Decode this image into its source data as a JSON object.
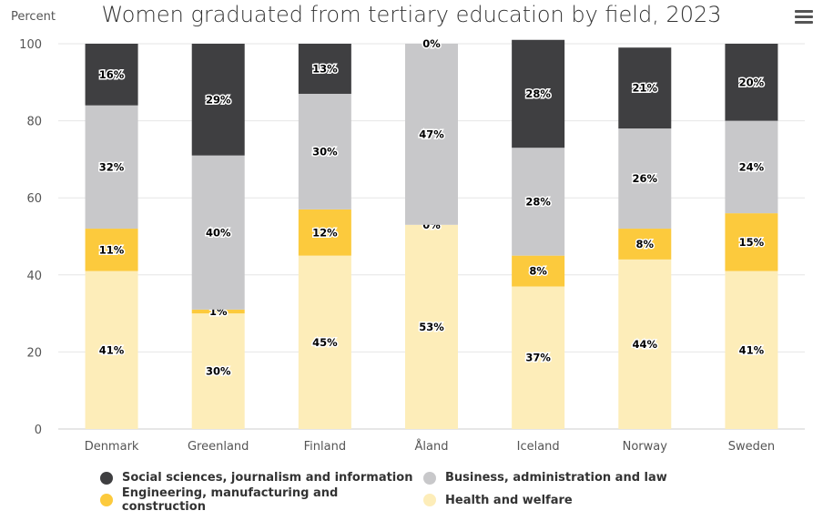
{
  "chart_data": {
    "type": "bar",
    "stacked": true,
    "title": "Women graduated from tertiary education by field, 2023",
    "ylabel": "Percent",
    "ylim": [
      0,
      100
    ],
    "yticks": [
      0,
      20,
      40,
      60,
      80,
      100
    ],
    "grid": true,
    "legend_position": "bottom",
    "categories": [
      "Denmark",
      "Greenland",
      "Finland",
      "Åland",
      "Iceland",
      "Norway",
      "Sweden"
    ],
    "series": [
      {
        "name": "Health and welfare",
        "color": "#fdedb9",
        "values": [
          41,
          30,
          45,
          53,
          37,
          44,
          41
        ]
      },
      {
        "name": "Engineering, manufacturing and construction",
        "color": "#fcca3d",
        "values": [
          11,
          1,
          12,
          0,
          8,
          8,
          15
        ]
      },
      {
        "name": "Business, administration and law",
        "color": "#c8c8ca",
        "values": [
          32,
          40,
          30,
          47,
          28,
          26,
          24
        ]
      },
      {
        "name": "Social sciences, journalism and information",
        "color": "#3f3f41",
        "values": [
          16,
          29,
          13,
          0,
          28,
          21,
          20
        ]
      }
    ]
  },
  "legend_order": [
    3,
    2,
    1,
    0
  ],
  "menu_icon": "hamburger-menu-icon"
}
